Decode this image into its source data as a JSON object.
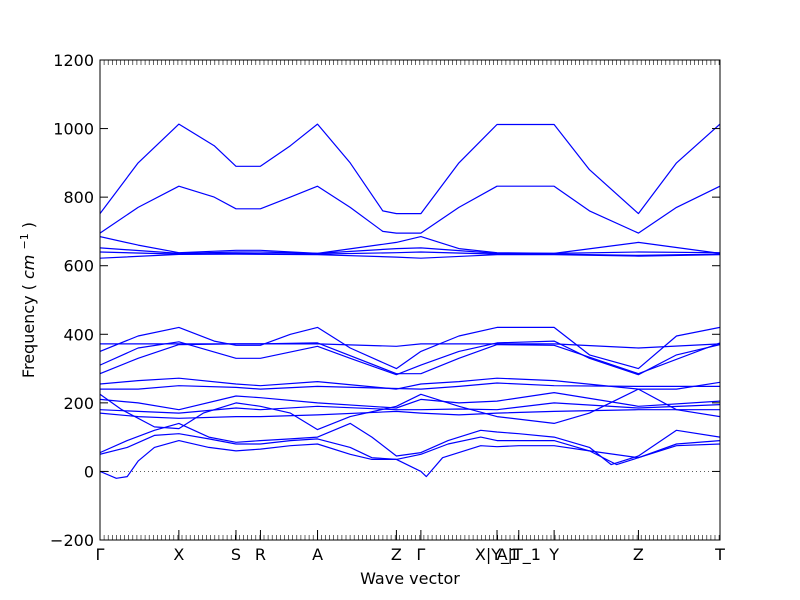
{
  "chart_data": {
    "type": "line",
    "title": "",
    "xlabel": "Wave vector",
    "ylabel_text": "Frequency",
    "ylabel_unit_base": "cm",
    "ylabel_unit_exp": "−1",
    "ylim": [
      -200,
      1200
    ],
    "yticks": [
      -200,
      0,
      200,
      400,
      600,
      800,
      1000,
      1200
    ],
    "xlim": [
      0,
      11.4
    ],
    "xticks": [
      {
        "label": "Γ",
        "x": 0.0
      },
      {
        "label": "X",
        "x": 1.45
      },
      {
        "label": "S",
        "x": 2.5
      },
      {
        "label": "R",
        "x": 2.95
      },
      {
        "label": "A",
        "x": 4.0
      },
      {
        "label": "Z",
        "x": 5.45
      },
      {
        "label": "Γ",
        "x": 5.9
      },
      {
        "label": "X|Y_1",
        "x": 7.3
      },
      {
        "label": "A|T_1",
        "x": 7.7
      },
      {
        "label": "Y",
        "x": 8.35
      },
      {
        "label": "Z",
        "x": 9.9
      },
      {
        "label": "T",
        "x": 11.4
      }
    ],
    "zero_line": true,
    "line_color": "#0000ff",
    "series": [
      {
        "values": [
          [
            0,
            752
          ],
          [
            0.7,
            900
          ],
          [
            1.45,
            1013
          ],
          [
            2.1,
            950
          ],
          [
            2.5,
            890
          ],
          [
            2.95,
            890
          ],
          [
            3.5,
            950
          ],
          [
            4.0,
            1013
          ],
          [
            4.6,
            900
          ],
          [
            5.2,
            760
          ],
          [
            5.45,
            752
          ],
          [
            5.9,
            752
          ],
          [
            6.6,
            900
          ],
          [
            7.3,
            1012
          ],
          [
            7.7,
            1012
          ],
          [
            8.35,
            1012
          ],
          [
            9.0,
            880
          ],
          [
            9.9,
            752
          ],
          [
            10.6,
            900
          ],
          [
            11.4,
            1013
          ]
        ]
      },
      {
        "values": [
          [
            0,
            695
          ],
          [
            0.7,
            770
          ],
          [
            1.45,
            832
          ],
          [
            2.1,
            800
          ],
          [
            2.5,
            766
          ],
          [
            2.95,
            766
          ],
          [
            3.5,
            800
          ],
          [
            4.0,
            832
          ],
          [
            4.6,
            770
          ],
          [
            5.2,
            700
          ],
          [
            5.45,
            695
          ],
          [
            5.9,
            695
          ],
          [
            6.6,
            770
          ],
          [
            7.3,
            832
          ],
          [
            7.7,
            832
          ],
          [
            8.35,
            832
          ],
          [
            9.0,
            760
          ],
          [
            9.9,
            695
          ],
          [
            10.6,
            770
          ],
          [
            11.4,
            832
          ]
        ]
      },
      {
        "values": [
          [
            0,
            685
          ],
          [
            0.7,
            660
          ],
          [
            1.45,
            638
          ],
          [
            2.5,
            645
          ],
          [
            2.95,
            645
          ],
          [
            4.0,
            636
          ],
          [
            5.45,
            668
          ],
          [
            5.9,
            685
          ],
          [
            6.6,
            650
          ],
          [
            7.3,
            638
          ],
          [
            8.35,
            636
          ],
          [
            9.9,
            668
          ],
          [
            11.4,
            636
          ]
        ]
      },
      {
        "values": [
          [
            0,
            652
          ],
          [
            1.45,
            636
          ],
          [
            2.5,
            640
          ],
          [
            2.95,
            640
          ],
          [
            4.0,
            636
          ],
          [
            5.45,
            650
          ],
          [
            5.9,
            652
          ],
          [
            7.3,
            636
          ],
          [
            8.35,
            636
          ],
          [
            9.9,
            640
          ],
          [
            11.4,
            638
          ]
        ]
      },
      {
        "values": [
          [
            0,
            640
          ],
          [
            1.45,
            634
          ],
          [
            2.5,
            636
          ],
          [
            4.0,
            634
          ],
          [
            5.45,
            638
          ],
          [
            5.9,
            640
          ],
          [
            7.3,
            634
          ],
          [
            8.35,
            634
          ],
          [
            9.9,
            630
          ],
          [
            11.4,
            634
          ]
        ]
      },
      {
        "values": [
          [
            0,
            622
          ],
          [
            1.45,
            633
          ],
          [
            2.5,
            634
          ],
          [
            4.0,
            632
          ],
          [
            5.45,
            625
          ],
          [
            5.9,
            622
          ],
          [
            7.3,
            632
          ],
          [
            8.35,
            632
          ],
          [
            9.9,
            628
          ],
          [
            11.4,
            632
          ]
        ]
      },
      {
        "values": [
          [
            0,
            372
          ],
          [
            1.45,
            372
          ],
          [
            2.95,
            372
          ],
          [
            4.0,
            372
          ],
          [
            5.45,
            365
          ],
          [
            5.9,
            372
          ],
          [
            7.3,
            372
          ],
          [
            8.35,
            372
          ],
          [
            9.9,
            360
          ],
          [
            11.4,
            372
          ]
        ]
      },
      {
        "values": [
          [
            0,
            350
          ],
          [
            0.7,
            395
          ],
          [
            1.45,
            420
          ],
          [
            2.1,
            380
          ],
          [
            2.5,
            368
          ],
          [
            2.95,
            368
          ],
          [
            3.5,
            400
          ],
          [
            4.0,
            420
          ],
          [
            4.6,
            360
          ],
          [
            5.45,
            300
          ],
          [
            5.9,
            350
          ],
          [
            6.6,
            395
          ],
          [
            7.3,
            420
          ],
          [
            8.35,
            420
          ],
          [
            9.0,
            340
          ],
          [
            9.9,
            300
          ],
          [
            10.6,
            395
          ],
          [
            11.4,
            420
          ]
        ]
      },
      {
        "values": [
          [
            0,
            310
          ],
          [
            0.7,
            360
          ],
          [
            1.45,
            378
          ],
          [
            2.5,
            330
          ],
          [
            2.95,
            330
          ],
          [
            4.0,
            365
          ],
          [
            4.6,
            330
          ],
          [
            5.45,
            282
          ],
          [
            5.9,
            310
          ],
          [
            6.6,
            350
          ],
          [
            7.3,
            375
          ],
          [
            8.35,
            380
          ],
          [
            9.0,
            330
          ],
          [
            9.9,
            282
          ],
          [
            10.6,
            340
          ],
          [
            11.4,
            370
          ]
        ]
      },
      {
        "values": [
          [
            0,
            285
          ],
          [
            0.7,
            330
          ],
          [
            1.45,
            370
          ],
          [
            2.5,
            372
          ],
          [
            2.95,
            372
          ],
          [
            4.0,
            375
          ],
          [
            5.45,
            285
          ],
          [
            5.9,
            285
          ],
          [
            6.6,
            330
          ],
          [
            7.3,
            370
          ],
          [
            8.35,
            368
          ],
          [
            9.9,
            285
          ],
          [
            11.4,
            375
          ]
        ]
      },
      {
        "values": [
          [
            0,
            255
          ],
          [
            0.7,
            265
          ],
          [
            1.45,
            272
          ],
          [
            2.5,
            255
          ],
          [
            2.95,
            250
          ],
          [
            4.0,
            262
          ],
          [
            5.45,
            240
          ],
          [
            5.9,
            255
          ],
          [
            6.6,
            262
          ],
          [
            7.3,
            272
          ],
          [
            8.35,
            265
          ],
          [
            9.9,
            240
          ],
          [
            10.6,
            240
          ],
          [
            11.4,
            260
          ]
        ]
      },
      {
        "values": [
          [
            0,
            240
          ],
          [
            0.7,
            240
          ],
          [
            1.45,
            250
          ],
          [
            2.5,
            245
          ],
          [
            2.95,
            240
          ],
          [
            4.0,
            248
          ],
          [
            5.45,
            242
          ],
          [
            5.9,
            240
          ],
          [
            6.6,
            248
          ],
          [
            7.3,
            258
          ],
          [
            8.35,
            250
          ],
          [
            9.9,
            248
          ],
          [
            11.4,
            248
          ]
        ]
      },
      {
        "values": [
          [
            0,
            225
          ],
          [
            0.4,
            180
          ],
          [
            1.0,
            130
          ],
          [
            1.45,
            125
          ],
          [
            1.9,
            170
          ],
          [
            2.5,
            200
          ],
          [
            2.95,
            190
          ],
          [
            3.5,
            170
          ],
          [
            4.0,
            122
          ],
          [
            4.6,
            160
          ],
          [
            5.45,
            190
          ],
          [
            5.9,
            225
          ],
          [
            6.6,
            190
          ],
          [
            7.3,
            160
          ],
          [
            8.35,
            140
          ],
          [
            9.0,
            170
          ],
          [
            9.9,
            240
          ],
          [
            10.6,
            180
          ],
          [
            11.4,
            160
          ]
        ]
      },
      {
        "values": [
          [
            0,
            210
          ],
          [
            0.7,
            200
          ],
          [
            1.45,
            180
          ],
          [
            2.5,
            220
          ],
          [
            2.95,
            215
          ],
          [
            4.0,
            200
          ],
          [
            5.45,
            185
          ],
          [
            5.9,
            210
          ],
          [
            6.6,
            200
          ],
          [
            7.3,
            205
          ],
          [
            8.35,
            230
          ],
          [
            9.9,
            190
          ],
          [
            11.4,
            205
          ]
        ]
      },
      {
        "values": [
          [
            0,
            180
          ],
          [
            0.7,
            175
          ],
          [
            1.45,
            170
          ],
          [
            2.5,
            185
          ],
          [
            2.95,
            180
          ],
          [
            4.0,
            190
          ],
          [
            5.45,
            180
          ],
          [
            5.9,
            180
          ],
          [
            6.6,
            182
          ],
          [
            7.3,
            180
          ],
          [
            8.35,
            200
          ],
          [
            9.9,
            185
          ],
          [
            11.4,
            195
          ]
        ]
      },
      {
        "values": [
          [
            0,
            170
          ],
          [
            0.7,
            160
          ],
          [
            1.45,
            155
          ],
          [
            2.5,
            160
          ],
          [
            2.95,
            160
          ],
          [
            4.0,
            165
          ],
          [
            5.45,
            175
          ],
          [
            5.9,
            170
          ],
          [
            6.6,
            165
          ],
          [
            7.3,
            170
          ],
          [
            8.35,
            175
          ],
          [
            9.9,
            180
          ],
          [
            11.4,
            180
          ]
        ]
      },
      {
        "values": [
          [
            0,
            55
          ],
          [
            0.5,
            90
          ],
          [
            1.0,
            120
          ],
          [
            1.45,
            140
          ],
          [
            2.0,
            100
          ],
          [
            2.5,
            85
          ],
          [
            2.95,
            90
          ],
          [
            3.5,
            95
          ],
          [
            4.0,
            100
          ],
          [
            4.6,
            140
          ],
          [
            5.0,
            100
          ],
          [
            5.45,
            45
          ],
          [
            5.9,
            55
          ],
          [
            6.4,
            90
          ],
          [
            7.0,
            120
          ],
          [
            7.3,
            115
          ],
          [
            7.7,
            110
          ],
          [
            8.35,
            100
          ],
          [
            9.0,
            70
          ],
          [
            9.4,
            20
          ],
          [
            9.9,
            45
          ],
          [
            10.6,
            120
          ],
          [
            11.4,
            100
          ]
        ]
      },
      {
        "values": [
          [
            0,
            50
          ],
          [
            0.5,
            70
          ],
          [
            1.0,
            105
          ],
          [
            1.45,
            110
          ],
          [
            2.0,
            95
          ],
          [
            2.5,
            80
          ],
          [
            2.95,
            80
          ],
          [
            3.5,
            90
          ],
          [
            4.0,
            95
          ],
          [
            4.6,
            70
          ],
          [
            5.0,
            40
          ],
          [
            5.45,
            35
          ],
          [
            5.9,
            50
          ],
          [
            6.4,
            80
          ],
          [
            7.0,
            100
          ],
          [
            7.3,
            90
          ],
          [
            7.7,
            90
          ],
          [
            8.35,
            90
          ],
          [
            9.0,
            60
          ],
          [
            9.5,
            20
          ],
          [
            9.9,
            40
          ],
          [
            10.6,
            80
          ],
          [
            11.4,
            90
          ]
        ]
      },
      {
        "values": [
          [
            0,
            0
          ],
          [
            0.3,
            -20
          ],
          [
            0.5,
            -15
          ],
          [
            0.7,
            30
          ],
          [
            1.0,
            70
          ],
          [
            1.45,
            90
          ],
          [
            2.0,
            70
          ],
          [
            2.5,
            60
          ],
          [
            2.95,
            65
          ],
          [
            3.5,
            75
          ],
          [
            4.0,
            80
          ],
          [
            4.6,
            50
          ],
          [
            5.0,
            35
          ],
          [
            5.45,
            35
          ],
          [
            5.9,
            0
          ],
          [
            6.0,
            -15
          ],
          [
            6.3,
            40
          ],
          [
            7.0,
            75
          ],
          [
            7.3,
            72
          ],
          [
            7.7,
            75
          ],
          [
            8.35,
            75
          ],
          [
            9.0,
            60
          ],
          [
            9.9,
            40
          ],
          [
            10.6,
            75
          ],
          [
            11.4,
            80
          ]
        ]
      }
    ]
  }
}
